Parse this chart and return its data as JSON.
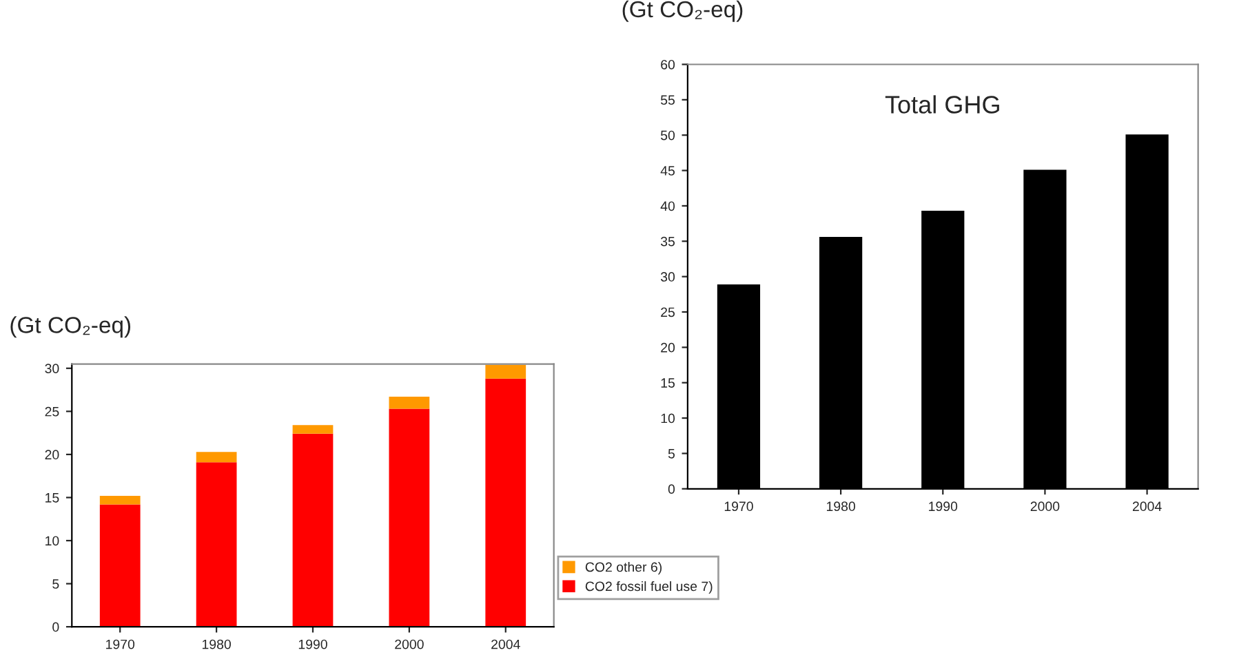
{
  "chart_data": [
    {
      "type": "bar",
      "ylabel": "(Gt CO₂-eq)",
      "categories": [
        "1970",
        "1980",
        "1990",
        "2000",
        "2004"
      ],
      "stacked": true,
      "series": [
        {
          "name": "CO2 fossil fuel use 7)",
          "color": "#ff0000",
          "values": [
            14.2,
            19.1,
            22.4,
            25.3,
            28.8
          ]
        },
        {
          "name": "CO2 other 6)",
          "color": "#ff9900",
          "values": [
            1.0,
            1.2,
            1.0,
            1.4,
            1.6
          ]
        }
      ],
      "ylim": [
        0,
        30.5
      ],
      "yticks": [
        0,
        5,
        10,
        15,
        20,
        25,
        30
      ],
      "legend": "bottom right"
    },
    {
      "type": "bar",
      "title": "Total GHG",
      "ylabel": "(Gt CO₂-eq)",
      "categories": [
        "1970",
        "1980",
        "1990",
        "2000",
        "2004"
      ],
      "series": [
        {
          "color": "#000000",
          "values": [
            28.9,
            35.6,
            39.3,
            45.1,
            50.1
          ]
        }
      ],
      "ylim": [
        0,
        60
      ],
      "yticks": [
        0,
        5,
        10,
        15,
        20,
        25,
        30,
        35,
        40,
        45,
        50,
        55,
        60
      ]
    }
  ]
}
